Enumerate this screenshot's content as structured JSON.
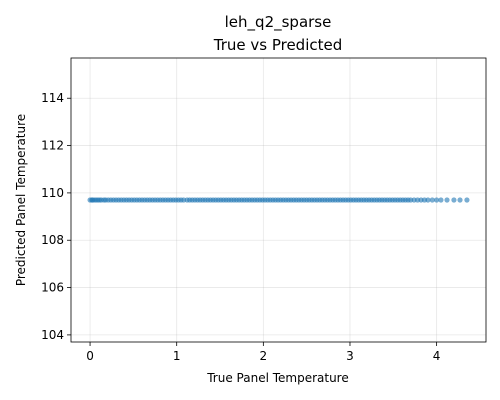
{
  "chart_data": {
    "type": "scatter",
    "title": "leh_q2_sparse",
    "subtitle": "True vs Predicted",
    "xlabel": "True Panel Temperature",
    "ylabel": "Predicted Panel Temperature",
    "xlim": [
      -0.22,
      4.57
    ],
    "ylim": [
      103.7,
      115.7
    ],
    "xticks": [
      0,
      1,
      2,
      3,
      4
    ],
    "yticks": [
      104,
      106,
      108,
      110,
      112,
      114
    ],
    "grid": true,
    "color": "#1f77b4",
    "x": [
      0.0,
      0.02,
      0.03,
      0.05,
      0.07,
      0.09,
      0.11,
      0.13,
      0.16,
      0.18,
      0.21,
      0.24,
      0.27,
      0.3,
      0.33,
      0.36,
      0.39,
      0.42,
      0.45,
      0.48,
      0.51,
      0.54,
      0.57,
      0.6,
      0.63,
      0.66,
      0.69,
      0.72,
      0.75,
      0.78,
      0.81,
      0.84,
      0.87,
      0.9,
      0.93,
      0.96,
      0.99,
      1.02,
      1.05,
      1.08,
      1.12,
      1.15,
      1.18,
      1.21,
      1.24,
      1.27,
      1.3,
      1.33,
      1.36,
      1.39,
      1.42,
      1.45,
      1.48,
      1.51,
      1.54,
      1.57,
      1.6,
      1.63,
      1.66,
      1.69,
      1.72,
      1.75,
      1.78,
      1.81,
      1.84,
      1.87,
      1.9,
      1.93,
      1.96,
      1.99,
      2.02,
      2.05,
      2.08,
      2.11,
      2.14,
      2.17,
      2.2,
      2.23,
      2.26,
      2.29,
      2.32,
      2.35,
      2.38,
      2.41,
      2.44,
      2.47,
      2.5,
      2.53,
      2.56,
      2.59,
      2.62,
      2.65,
      2.68,
      2.71,
      2.74,
      2.77,
      2.8,
      2.83,
      2.86,
      2.89,
      2.92,
      2.95,
      2.98,
      3.01,
      3.04,
      3.07,
      3.1,
      3.13,
      3.16,
      3.19,
      3.22,
      3.25,
      3.28,
      3.31,
      3.34,
      3.37,
      3.4,
      3.43,
      3.46,
      3.49,
      3.52,
      3.55,
      3.58,
      3.61,
      3.64,
      3.67,
      3.7,
      3.74,
      3.78,
      3.82,
      3.86,
      3.9,
      3.95,
      4.0,
      4.05,
      4.12,
      4.2,
      4.27,
      4.35
    ],
    "y_value": 109.7
  }
}
